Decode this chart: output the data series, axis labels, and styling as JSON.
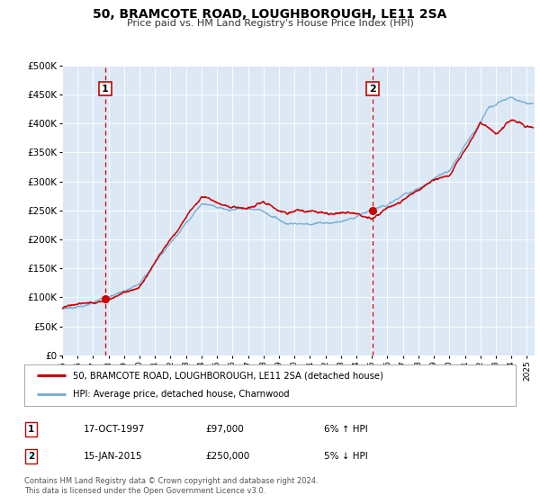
{
  "title": "50, BRAMCOTE ROAD, LOUGHBOROUGH, LE11 2SA",
  "subtitle": "Price paid vs. HM Land Registry's House Price Index (HPI)",
  "legend_line1": "50, BRAMCOTE ROAD, LOUGHBOROUGH, LE11 2SA (detached house)",
  "legend_line2": "HPI: Average price, detached house, Charnwood",
  "annotation1_label": "1",
  "annotation1_date": "17-OCT-1997",
  "annotation1_price": "£97,000",
  "annotation1_hpi": "6% ↑ HPI",
  "annotation2_label": "2",
  "annotation2_date": "15-JAN-2015",
  "annotation2_price": "£250,000",
  "annotation2_hpi": "5% ↓ HPI",
  "footer1": "Contains HM Land Registry data © Crown copyright and database right 2024.",
  "footer2": "This data is licensed under the Open Government Licence v3.0.",
  "sale1_x": 1997.79,
  "sale1_y": 97000,
  "sale2_x": 2015.04,
  "sale2_y": 250000,
  "vline1_x": 1997.79,
  "vline2_x": 2015.04,
  "ylim": [
    0,
    500000
  ],
  "xlim_start": 1995.0,
  "xlim_end": 2025.5,
  "price_color": "#cc0000",
  "hpi_color": "#7ab0d4",
  "vline_color": "#cc0000",
  "bg_color": "#dce9f5",
  "fig_bg": "#ffffff",
  "grid_color": "#ffffff",
  "annotation_box_color": "#cc0000"
}
